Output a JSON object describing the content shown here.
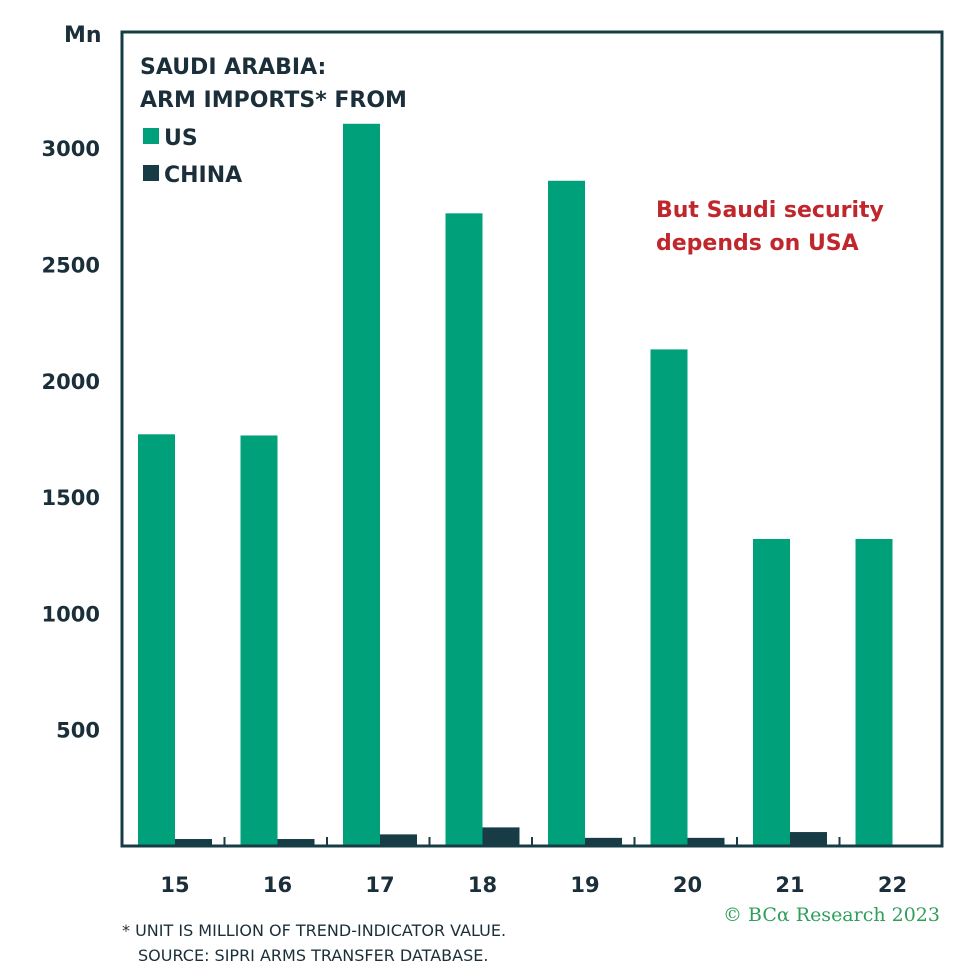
{
  "colors": {
    "us": "#00a07a",
    "china": "#173c46",
    "frame": "#173c46",
    "annotation": "#c0272d",
    "copyright": "#2e9e5b"
  },
  "chart_data": {
    "type": "bar",
    "unit_label": "Mn",
    "title_lines": [
      "SAUDI ARABIA:",
      "ARM IMPORTS* FROM"
    ],
    "categories": [
      "15",
      "16",
      "17",
      "18",
      "19",
      "20",
      "21",
      "22"
    ],
    "series": [
      {
        "name": "US",
        "values": [
          1770,
          1765,
          3105,
          2720,
          2860,
          2135,
          1320,
          1320
        ]
      },
      {
        "name": "CHINA",
        "values": [
          30,
          30,
          50,
          80,
          35,
          35,
          60,
          0
        ]
      }
    ],
    "yticks": [
      500,
      1000,
      1500,
      2000,
      2500,
      3000
    ],
    "ylim": [
      0,
      3500
    ],
    "annotation_lines": [
      "But Saudi security",
      "depends on USA"
    ],
    "legend_position": "top-left",
    "grid": false
  },
  "footnotes": [
    "*  UNIT IS MILLION OF TREND-INDICATOR VALUE.",
    "SOURCE: SIPRI ARMS TRANSFER DATABASE."
  ],
  "copyright": "© BCα Research 2023"
}
